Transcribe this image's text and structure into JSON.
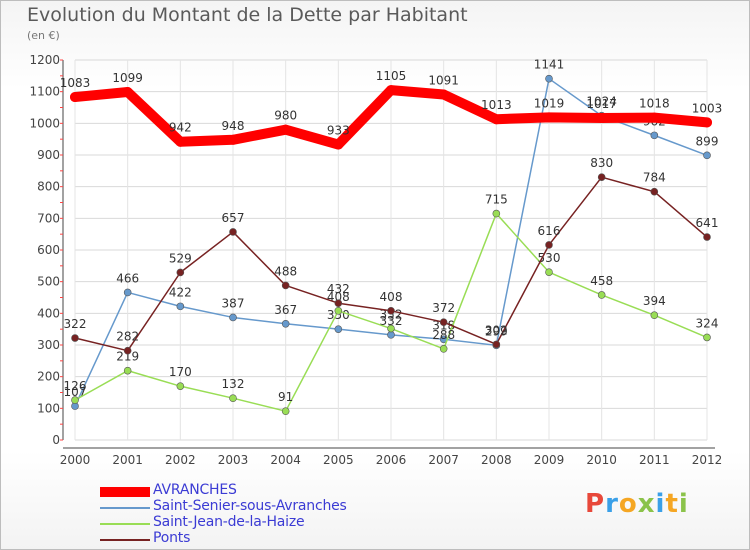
{
  "title": "Evolution du Montant de la Dette par Habitant",
  "subtitle": "(en €)",
  "logo_letters": [
    "P",
    "r",
    "o",
    "x",
    "i",
    "t",
    "i"
  ],
  "logo_colors": [
    "#e8483a",
    "#3aa0e8",
    "#f5a623",
    "#8bc34a",
    "#3aa0e8",
    "#f5a623",
    "#8bc34a"
  ],
  "chart_data": {
    "type": "line",
    "x": [
      "2000",
      "2001",
      "2002",
      "2003",
      "2004",
      "2005",
      "2006",
      "2007",
      "2008",
      "2009",
      "2010",
      "2011",
      "2012"
    ],
    "ylim": [
      0,
      1200
    ],
    "yticks": [
      0,
      100,
      200,
      300,
      400,
      500,
      600,
      700,
      800,
      900,
      1000,
      1100,
      1200
    ],
    "grid": true,
    "legend_position": "bottom-left",
    "series": [
      {
        "name": "AVRANCHES",
        "color": "#ff0000",
        "values": [
          1083,
          1099,
          942,
          948,
          980,
          933,
          1105,
          1091,
          1013,
          1019,
          1017,
          1018,
          1003
        ]
      },
      {
        "name": "Saint-Senier-sous-Avranches",
        "color": "#6699cc",
        "values": [
          107,
          466,
          422,
          387,
          367,
          350,
          332,
          318,
          299,
          1141,
          1024,
          962,
          899
        ]
      },
      {
        "name": "Saint-Jean-de-la-Haize",
        "color": "#99dd55",
        "values": [
          126,
          219,
          170,
          132,
          91,
          408,
          352,
          288,
          715,
          530,
          458,
          394,
          324
        ]
      },
      {
        "name": "Ponts",
        "color": "#772222",
        "values": [
          322,
          282,
          529,
          657,
          488,
          432,
          408,
          372,
          302,
          616,
          830,
          784,
          641
        ]
      }
    ]
  }
}
